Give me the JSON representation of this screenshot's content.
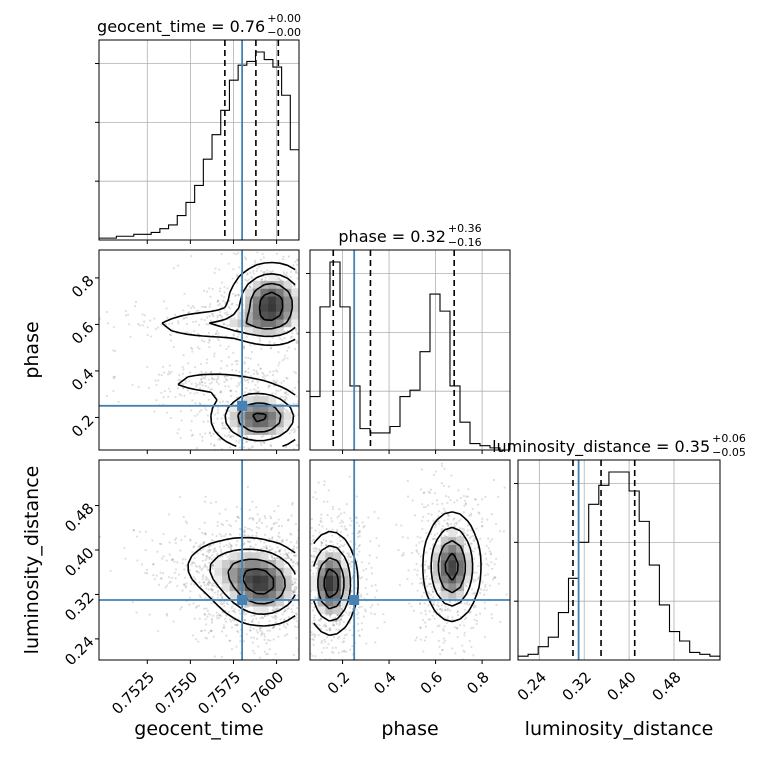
{
  "chart_data": {
    "type": "corner",
    "parameters": [
      "geocent_time",
      "phase",
      "luminosity_distance"
    ],
    "truth": {
      "geocent_time": 0.758,
      "phase": 0.25,
      "luminosity_distance": 0.31
    },
    "truth_color": "#4682b4",
    "titles": [
      {
        "param": "geocent_time",
        "prefix": "geocent_time = 0.76",
        "plus": "+0.00",
        "minus": "−0.00"
      },
      {
        "param": "phase",
        "prefix": "phase = 0.32",
        "plus": "+0.36",
        "minus": "−0.16"
      },
      {
        "param": "luminosity_distance",
        "prefix": "luminosity_distance = 0.35",
        "plus": "+0.06",
        "minus": "−0.05"
      }
    ],
    "axis_labels": {
      "x": [
        "geocent_time",
        "phase",
        "luminosity_distance"
      ],
      "y": [
        "phase",
        "luminosity_distance"
      ]
    },
    "ranges": {
      "geocent_time": [
        0.7497,
        0.7613
      ],
      "phase": [
        0.06,
        0.92
      ],
      "luminosity_distance": [
        0.202,
        0.562
      ]
    },
    "ticks": {
      "geocent_time": [
        "0.7525",
        "0.7550",
        "0.7575",
        "0.7600"
      ],
      "phase": [
        "0.2",
        "0.4",
        "0.6",
        "0.8"
      ],
      "luminosity_distance": [
        "0.24",
        "0.32",
        "0.40",
        "0.48"
      ]
    },
    "quantiles": {
      "geocent_time": [
        0.757,
        0.7588,
        0.7601
      ],
      "phase": [
        0.16,
        0.32,
        0.68
      ],
      "luminosity_distance": [
        0.3,
        0.35,
        0.41
      ]
    },
    "histograms": {
      "geocent_time": {
        "edges_range": [
          0.7497,
          0.7613
        ],
        "counts": [
          1,
          1,
          2,
          2,
          3,
          3,
          4,
          6,
          8,
          13,
          20,
          29,
          43,
          56,
          69,
          85,
          93,
          95,
          100,
          96,
          92,
          77,
          48
        ]
      },
      "phase": {
        "edges_range": [
          0.06,
          0.92
        ],
        "counts": [
          25,
          67,
          88,
          67,
          30,
          10,
          8,
          8,
          11,
          25,
          28,
          46,
          73,
          65,
          30,
          13,
          3,
          2,
          1,
          0
        ]
      },
      "luminosity_distance": {
        "edges_range": [
          0.202,
          0.562
        ],
        "counts": [
          2,
          3,
          7,
          12,
          25,
          43,
          62,
          82,
          92,
          99,
          99,
          89,
          73,
          50,
          29,
          15,
          10,
          4,
          3,
          2
        ]
      }
    },
    "contours": [
      {
        "x": "geocent_time",
        "y": "phase",
        "blobs": [
          {
            "cx": 0.7597,
            "cy": 0.69,
            "sx": 0.0012,
            "sy": 0.085,
            "w": 1.0
          },
          {
            "cx": 0.759,
            "cy": 0.2,
            "sx": 0.0014,
            "sy": 0.07,
            "w": 0.9
          },
          {
            "cx": 0.757,
            "cy": 0.6,
            "sx": 0.0025,
            "sy": 0.035,
            "w": 0.35
          },
          {
            "cx": 0.7562,
            "cy": 0.35,
            "sx": 0.0018,
            "sy": 0.03,
            "w": 0.22
          }
        ]
      },
      {
        "x": "geocent_time",
        "y": "luminosity_distance",
        "blobs": [
          {
            "cx": 0.7592,
            "cy": 0.335,
            "sx": 0.0014,
            "sy": 0.036,
            "w": 1.0
          },
          {
            "cx": 0.7575,
            "cy": 0.37,
            "sx": 0.0017,
            "sy": 0.03,
            "w": 0.45
          }
        ]
      },
      {
        "x": "phase",
        "y": "luminosity_distance",
        "blobs": [
          {
            "cx": 0.15,
            "cy": 0.34,
            "sx": 0.055,
            "sy": 0.045,
            "w": 1.0
          },
          {
            "cx": 0.67,
            "cy": 0.37,
            "sx": 0.06,
            "sy": 0.048,
            "w": 0.95
          }
        ]
      }
    ],
    "grid": true,
    "legend": "none"
  }
}
